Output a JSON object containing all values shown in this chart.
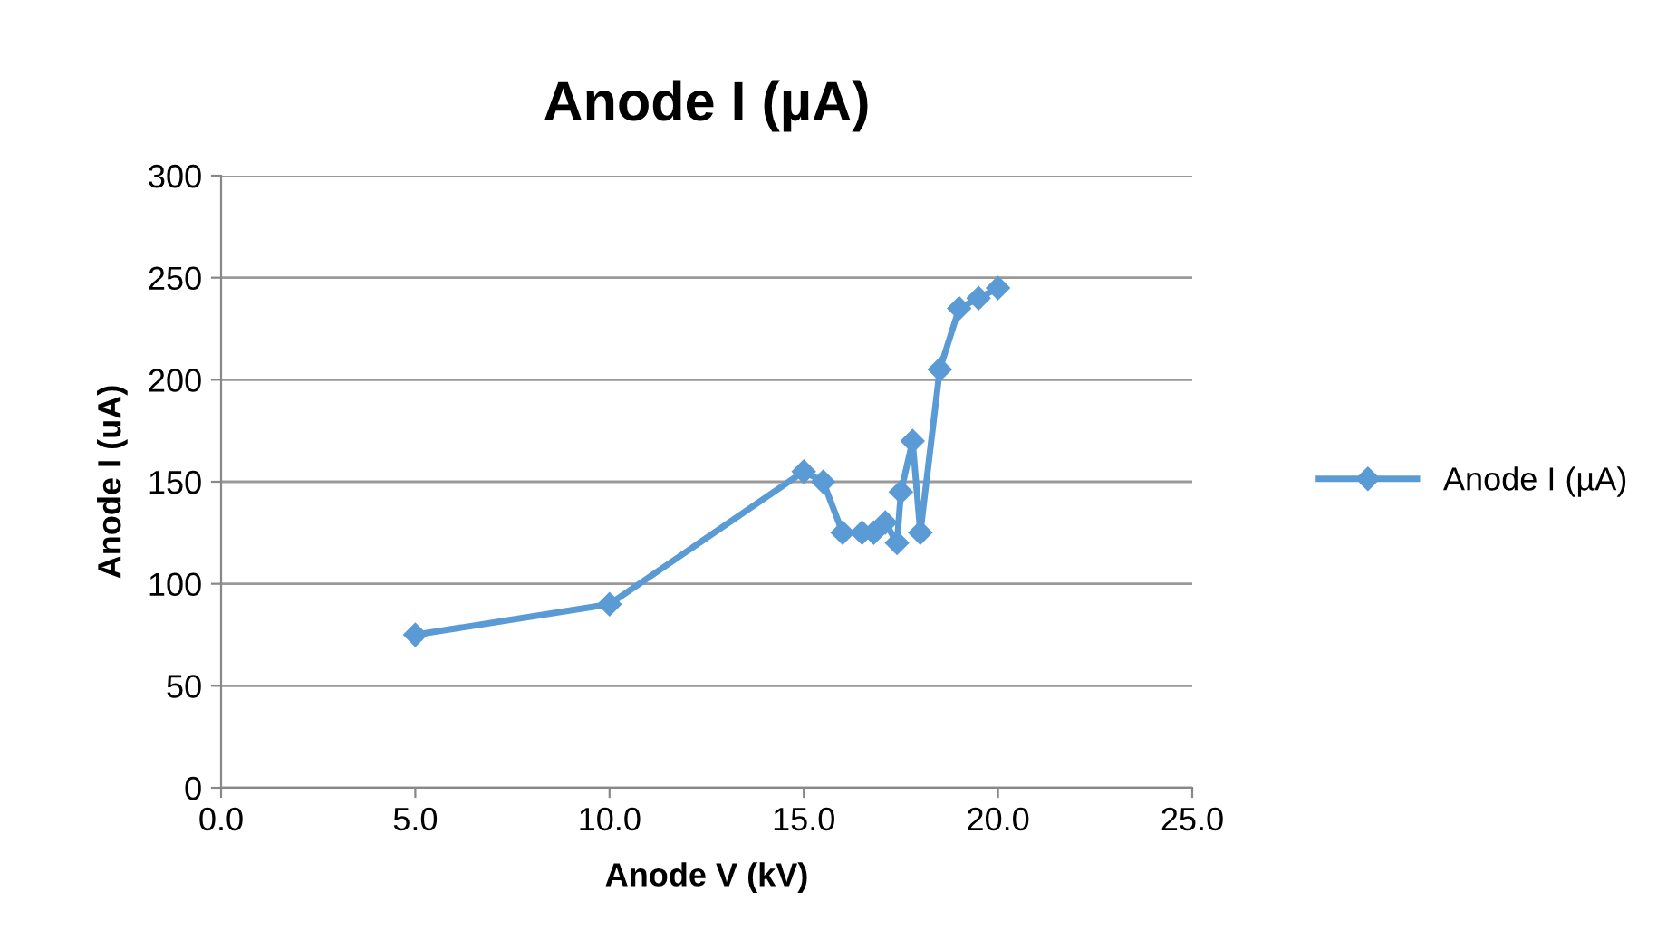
{
  "chart_data": {
    "type": "line",
    "title": "Anode I (µA)",
    "xlabel": "Anode V (kV)",
    "ylabel": "Anode I (uA)",
    "xlim": [
      0,
      25
    ],
    "xticks": [
      {
        "value": 0,
        "label": "0.0"
      },
      {
        "value": 5,
        "label": "5.0"
      },
      {
        "value": 10,
        "label": "10.0"
      },
      {
        "value": 15,
        "label": "15.0"
      },
      {
        "value": 20,
        "label": "20.0"
      },
      {
        "value": 25,
        "label": "25.0"
      }
    ],
    "ylim": [
      0,
      300
    ],
    "yticks": [
      0,
      50,
      100,
      150,
      200,
      250,
      300
    ],
    "series": [
      {
        "name": "Anode I (µA)",
        "color": "#5b9bd5",
        "x": [
          5,
          10,
          15,
          15.5,
          16,
          16.5,
          16.8,
          17.1,
          17.4,
          17.5,
          17.8,
          18,
          18.5,
          19,
          19.5,
          20
        ],
        "values": [
          75,
          90,
          155,
          150,
          125,
          125,
          125,
          130,
          120,
          145,
          170,
          125,
          205,
          235,
          240,
          245
        ]
      }
    ],
    "grid": "y",
    "legend": "right",
    "marker": "diamond",
    "line_style": "solid"
  }
}
